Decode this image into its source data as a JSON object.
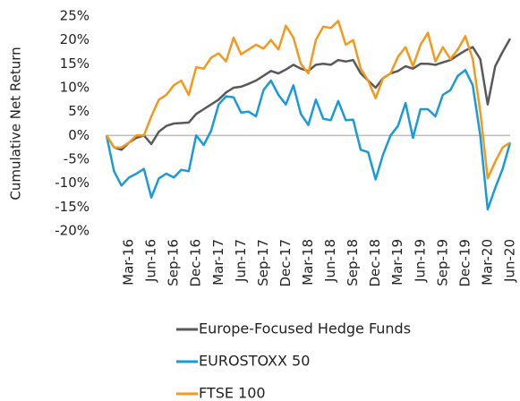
{
  "chart_data": {
    "type": "line",
    "y_label": "Cumulative Net Return",
    "categories": [
      null,
      null,
      null,
      "Mar-16",
      null,
      null,
      "Jun-16",
      null,
      null,
      "Sep-16",
      null,
      null,
      "Dec-16",
      null,
      null,
      "Mar-17",
      null,
      null,
      "Jun-17",
      null,
      null,
      "Sep-17",
      null,
      null,
      "Dec-17",
      null,
      null,
      "Mar-18",
      null,
      null,
      "Jun-18",
      null,
      null,
      "Sep-18",
      null,
      null,
      "Dec-18",
      null,
      null,
      "Mar-19",
      null,
      null,
      "Jun-19",
      null,
      null,
      "Sep-19",
      null,
      null,
      "Dec-19",
      null,
      null,
      "Mar-20",
      null,
      null,
      "Jun-20"
    ],
    "series": [
      {
        "name": "Europe-Focused Hedge Funds",
        "color": "#595959",
        "values": [
          0,
          -2.5,
          -3,
          -1.5,
          -0.5,
          0,
          -1.8,
          0.8,
          2,
          2.5,
          2.6,
          2.7,
          4.5,
          5.5,
          6.5,
          7.5,
          9,
          10,
          10.2,
          10.8,
          11.5,
          12.5,
          13.5,
          13,
          13.8,
          14.8,
          14,
          13.5,
          14.8,
          15,
          14.8,
          15.8,
          15.5,
          15.8,
          13,
          11.5,
          10,
          12,
          13,
          13.5,
          14.5,
          14,
          15,
          15,
          14.8,
          15.3,
          15.8,
          16.8,
          17.8,
          18.5,
          16,
          6.5,
          14.5,
          17.5,
          20.3
        ]
      },
      {
        "name": "EUROSTOXX 50",
        "color": "#1a9ad6",
        "values": [
          0,
          -7.5,
          -10.5,
          -8.8,
          -8,
          -7,
          -13,
          -9,
          -8,
          -8.8,
          -7.2,
          -7.5,
          0,
          -2,
          1,
          6.5,
          8.2,
          8,
          4.8,
          5,
          4,
          9.5,
          11.5,
          8.5,
          6.5,
          10.5,
          4.5,
          2.2,
          7.5,
          3.5,
          3.2,
          7.2,
          3.2,
          3.3,
          -3,
          -3.5,
          -9.2,
          -4,
          0,
          2,
          6.8,
          -0.5,
          5.5,
          5.5,
          4,
          8.5,
          9.5,
          12.5,
          13.7,
          10.5,
          0,
          -15.5,
          -11,
          -7,
          -1.5
        ]
      },
      {
        "name": "FTSE 100",
        "color": "#f39a1e",
        "values": [
          0,
          -2.5,
          -2.5,
          -1.5,
          0,
          0,
          4,
          7.5,
          8.5,
          10.5,
          11.5,
          8.5,
          14.3,
          14,
          16.3,
          17.2,
          15.5,
          20.5,
          17,
          18,
          19,
          18.2,
          20,
          18,
          23,
          20.5,
          15,
          13,
          20,
          22.8,
          22.5,
          24,
          19,
          20,
          14,
          11.5,
          7.8,
          12,
          13,
          16.5,
          18.5,
          14.5,
          19,
          21.5,
          15.5,
          18.5,
          16,
          18,
          20.8,
          16,
          5,
          -9,
          -5.5,
          -2.5,
          -1.5
        ]
      }
    ],
    "ylim": [
      -20,
      25
    ],
    "yticks": [
      {
        "value": 25,
        "label": "25%"
      },
      {
        "value": 20,
        "label": "20%"
      },
      {
        "value": 15,
        "label": "15%"
      },
      {
        "value": 10,
        "label": "10%"
      },
      {
        "value": 5,
        "label": "5%"
      },
      {
        "value": 0,
        "label": "0%"
      },
      {
        "value": -5,
        "label": "-5%"
      },
      {
        "value": -10,
        "label": "-10%"
      },
      {
        "value": -15,
        "label": "-15%"
      },
      {
        "value": -20,
        "label": "-20%"
      }
    ],
    "legend": "bottom"
  }
}
